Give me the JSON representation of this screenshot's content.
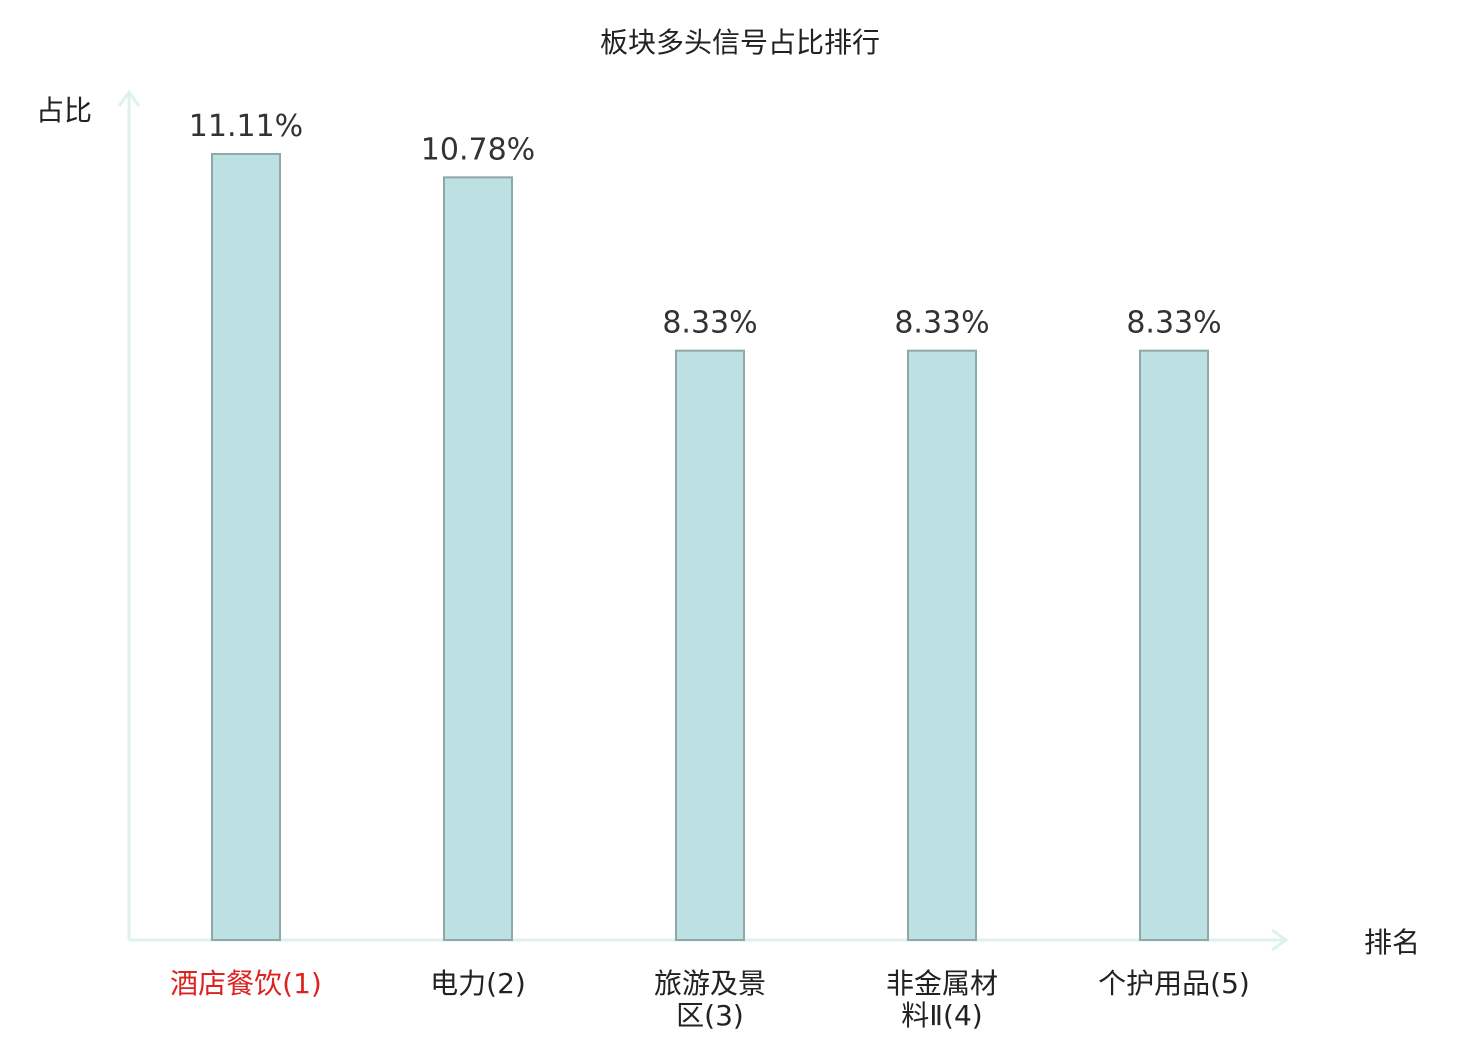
{
  "chart_data": {
    "type": "bar",
    "title": "板块多头信号占比排行",
    "ylabel": "占比",
    "xlabel": "排名",
    "categories": [
      [
        "酒店餐饮(1)"
      ],
      [
        "电力(2)"
      ],
      [
        "旅游及景",
        "区(3)"
      ],
      [
        "非金属材",
        "料Ⅱ(4)"
      ],
      [
        "个护用品(5)"
      ]
    ],
    "values": [
      11.11,
      10.78,
      8.33,
      8.33,
      8.33
    ],
    "value_labels": [
      "11.11%",
      "10.78%",
      "8.33%",
      "8.33%",
      "8.33%"
    ],
    "highlight_index": 0,
    "ylim": [
      0,
      11.11
    ],
    "grid": false,
    "colors": {
      "bar_fill": "#bde1e2",
      "bar_stroke": "#8ea8a8",
      "axis": "#dff1ef",
      "highlight_text": "#dd2222"
    }
  }
}
